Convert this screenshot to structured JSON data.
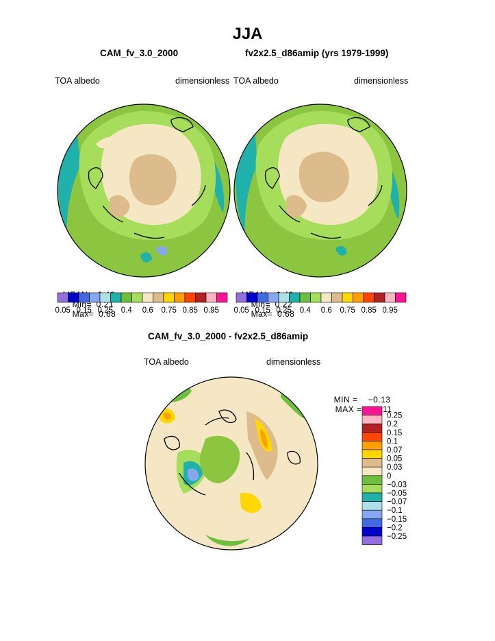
{
  "page_title": "JJA",
  "colors": {
    "abs_palette": [
      "#9370db",
      "#0000cd",
      "#4169e1",
      "#87a7ee",
      "#aee0e8",
      "#20b2aa",
      "#6dbf3c",
      "#a6de5c",
      "#f5e6c4",
      "#dcbb8c",
      "#ffd700",
      "#ff9f00",
      "#ff4500",
      "#b22222",
      "#ffb6c1",
      "#ff1493"
    ],
    "diff_palette": [
      "#9370db",
      "#0000cd",
      "#4169e1",
      "#87a7ee",
      "#aee0e8",
      "#20b2aa",
      "#a6de5c",
      "#6dbf3c",
      "#f5e6c4",
      "#dcbb8c",
      "#ffd700",
      "#ff9f00",
      "#ff4500",
      "#b22222",
      "#ffb6c1",
      "#ff1493"
    ],
    "ocean": "#8cc640",
    "land_ice": "#dcbb8c",
    "sea_ice": "#f5e6c4"
  },
  "chart_data": [
    {
      "type": "heatmap",
      "projection": "north-polar-stereographic",
      "title": "CAM_fv_3.0_2000",
      "variable": "TOA albedo",
      "units": "dimensionless",
      "mean": "0.46",
      "min": "0.21",
      "max": "0.68",
      "stat_labels": {
        "mean": "MEAN=",
        "min": "Min=",
        "max": "Max="
      },
      "levels": [
        "0.05",
        "0.15",
        "0.25",
        "0.4",
        "0.6",
        "0.75",
        "0.85",
        "0.95"
      ]
    },
    {
      "type": "heatmap",
      "projection": "north-polar-stereographic",
      "title": "fv2x2.5_d86amip (yrs 1979-1999)",
      "variable": "TOA albedo",
      "units": "dimensionless",
      "mean": "0.46",
      "min": "0.22",
      "max": "0.68",
      "stat_labels": {
        "mean": "MEAN=",
        "min": "Min=",
        "max": "Max="
      },
      "levels": [
        "0.05",
        "0.15",
        "0.25",
        "0.4",
        "0.6",
        "0.75",
        "0.85",
        "0.95"
      ]
    },
    {
      "type": "heatmap",
      "projection": "north-polar-stereographic",
      "title": "CAM_fv_3.0_2000 - fv2x2.5_d86amip",
      "variable": "TOA albedo",
      "units": "dimensionless",
      "min_label": "MIN =",
      "min": "−0.13",
      "max_label": "MAX =",
      "max": "0.11",
      "levels": [
        "0.25",
        "0.2",
        "0.15",
        "0.1",
        "0.07",
        "0.05",
        "0.03",
        "0",
        "−0.03",
        "−0.05",
        "−0.07",
        "−0.1",
        "−0.15",
        "−0.2",
        "−0.25"
      ]
    }
  ]
}
